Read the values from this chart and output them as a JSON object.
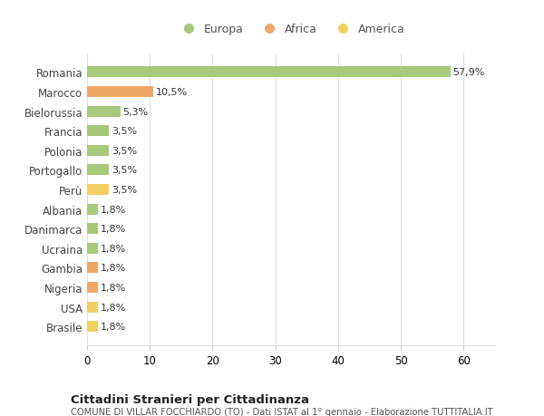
{
  "countries": [
    "Romania",
    "Marocco",
    "Bielorussia",
    "Francia",
    "Polonia",
    "Portogallo",
    "Perù",
    "Albania",
    "Danimarca",
    "Ucraina",
    "Gambia",
    "Nigeria",
    "USA",
    "Brasile"
  ],
  "values": [
    57.9,
    10.5,
    5.3,
    3.5,
    3.5,
    3.5,
    3.5,
    1.8,
    1.8,
    1.8,
    1.8,
    1.8,
    1.8,
    1.8
  ],
  "labels": [
    "57,9%",
    "10,5%",
    "5,3%",
    "3,5%",
    "3,5%",
    "3,5%",
    "3,5%",
    "1,8%",
    "1,8%",
    "1,8%",
    "1,8%",
    "1,8%",
    "1,8%",
    "1,8%"
  ],
  "categories": [
    "Europa",
    "Africa",
    "America"
  ],
  "continent": [
    "Europa",
    "Africa",
    "Europa",
    "Europa",
    "Europa",
    "Europa",
    "America",
    "Europa",
    "Europa",
    "Europa",
    "Africa",
    "Africa",
    "America",
    "America"
  ],
  "colors": {
    "Europa": "#a8c87a",
    "Africa": "#f0a868",
    "America": "#f0d060"
  },
  "bg_color": "#ffffff",
  "grid_color": "#e0e0e0",
  "title": "Cittadini Stranieri per Cittadinanza",
  "subtitle": "COMUNE DI VILLAR FOCCHIARDO (TO) - Dati ISTAT al 1° gennaio - Elaborazione TUTTITALIA.IT",
  "xlim": [
    0,
    65
  ],
  "xticks": [
    0,
    10,
    20,
    30,
    40,
    50,
    60
  ]
}
